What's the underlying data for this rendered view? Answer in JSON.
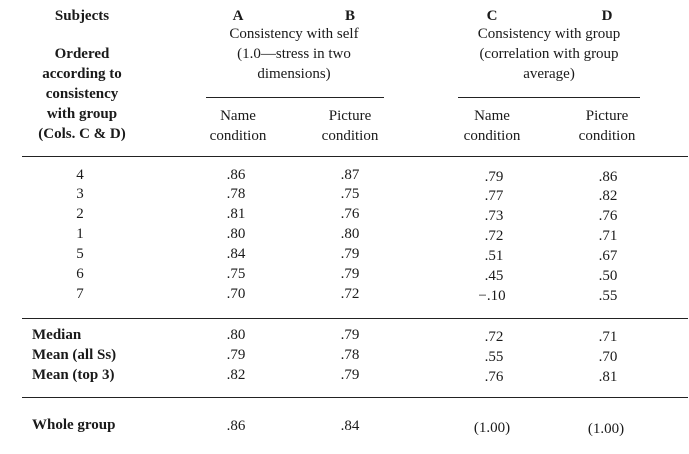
{
  "header": {
    "subjects": [
      "Subjects",
      "",
      "Ordered",
      "according to",
      "consistency",
      "with group",
      "(Cols. C & D)"
    ],
    "col_a_letter": "A",
    "col_b_letter": "B",
    "col_c_letter": "C",
    "col_d_letter": "D",
    "ab_group": [
      "Consistency with self",
      "(1.0—stress in two",
      "dimensions)"
    ],
    "cd_group": [
      "Consistency with group",
      "(correlation with group",
      "average)"
    ],
    "sub_a": [
      "Name",
      "condition"
    ],
    "sub_b": [
      "Picture",
      "condition"
    ],
    "sub_c": [
      "Name",
      "condition"
    ],
    "sub_d": [
      "Picture",
      "condition"
    ]
  },
  "subject_rows": [
    {
      "label": "4",
      "a": ".86",
      "b": ".87",
      "c": ".79",
      "d": ".86"
    },
    {
      "label": "3",
      "a": ".78",
      "b": ".75",
      "c": ".77",
      "d": ".82"
    },
    {
      "label": "2",
      "a": ".81",
      "b": ".76",
      "c": ".73",
      "d": ".76"
    },
    {
      "label": "1",
      "a": ".80",
      "b": ".80",
      "c": ".72",
      "d": ".71"
    },
    {
      "label": "5",
      "a": ".84",
      "b": ".79",
      "c": ".51",
      "d": ".67"
    },
    {
      "label": "6",
      "a": ".75",
      "b": ".79",
      "c": ".45",
      "d": ".50"
    },
    {
      "label": "7",
      "a": ".70",
      "b": ".72",
      "c": "−.10",
      "d": ".55"
    }
  ],
  "summary_rows": [
    {
      "label": "Median",
      "a": ".80",
      "b": ".79",
      "c": ".72",
      "d": ".71"
    },
    {
      "label": "Mean (all Ss)",
      "a": ".79",
      "b": ".78",
      "c": ".55",
      "d": ".70"
    },
    {
      "label": "Mean (top 3)",
      "a": ".82",
      "b": ".79",
      "c": ".76",
      "d": ".81"
    }
  ],
  "whole_group": {
    "label": "Whole group",
    "a": ".86",
    "b": ".84",
    "c": "(1.00)",
    "d": "(1.00)"
  }
}
